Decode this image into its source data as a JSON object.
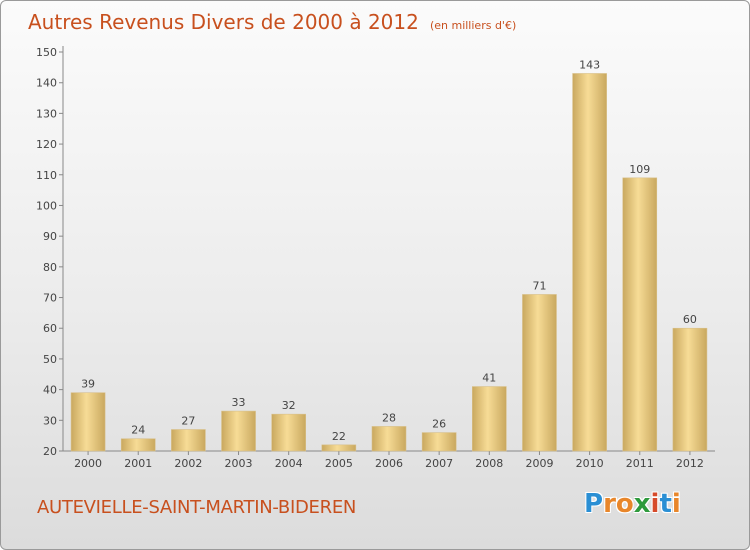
{
  "header": {
    "title": "Autres Revenus Divers de 2000 à 2012",
    "subtitle": "(en milliers d'€)"
  },
  "footer": {
    "place": "AUTEVIELLE-SAINT-MARTIN-BIDEREN",
    "logo": {
      "letters": [
        "P",
        "r",
        "o",
        "x",
        "i",
        "t",
        "i"
      ]
    }
  },
  "colors": {
    "title": "#c8501e",
    "bar_light": "#f7dc96",
    "bar_dark": "#c9a85f",
    "logo": [
      "#2a8fd4",
      "#e8862a",
      "#e8862a",
      "#2e9a3c",
      "#d64a2a",
      "#2a8fd4",
      "#e8862a"
    ]
  },
  "chart_data": {
    "type": "bar",
    "categories": [
      "2000",
      "2001",
      "2002",
      "2003",
      "2004",
      "2005",
      "2006",
      "2007",
      "2008",
      "2009",
      "2010",
      "2011",
      "2012"
    ],
    "values": [
      39,
      24,
      27,
      33,
      32,
      22,
      28,
      26,
      41,
      71,
      143,
      109,
      60
    ],
    "ylim": [
      20,
      150
    ],
    "yticks": [
      20,
      30,
      40,
      50,
      60,
      70,
      80,
      90,
      100,
      110,
      120,
      130,
      140,
      150
    ],
    "grid": false,
    "legend": "none"
  }
}
